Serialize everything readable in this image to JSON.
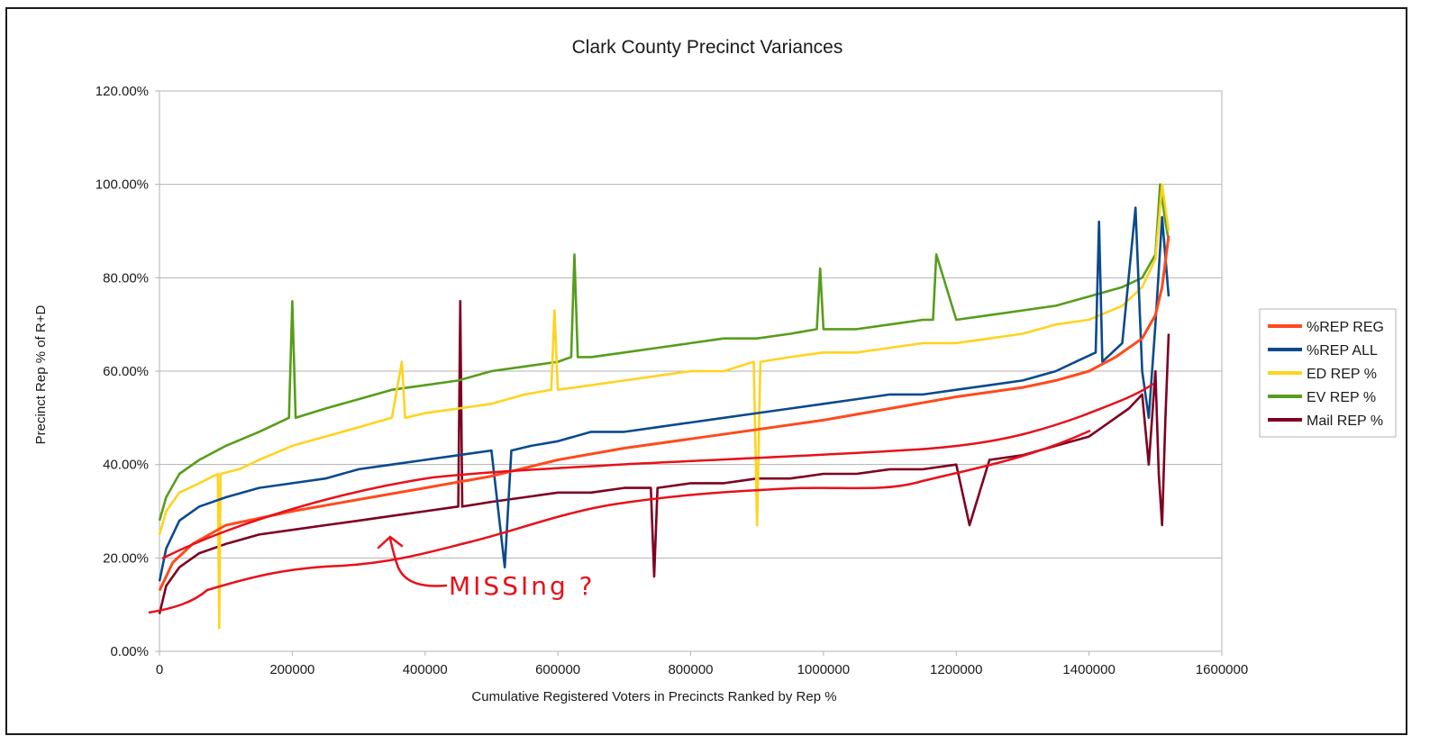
{
  "chart_data": {
    "type": "line",
    "title": "Clark County Precinct Variances",
    "xlabel": "Cumulative Registered Voters in Precincts Ranked by Rep %",
    "ylabel": "Precinct Rep % of R+D",
    "xlim": [
      0,
      1600000
    ],
    "ylim": [
      0,
      1.2
    ],
    "x_ticks": [
      "0",
      "200000",
      "400000",
      "600000",
      "800000",
      "1000000",
      "1200000",
      "1400000",
      "1600000"
    ],
    "y_ticks": [
      "0.00%",
      "20.00%",
      "40.00%",
      "60.00%",
      "80.00%",
      "100.00%",
      "120.00%"
    ],
    "grid": "horizontal",
    "legend_position": "right",
    "series": [
      {
        "name": "%REP REG",
        "color": "#ff4a1c",
        "x": [
          0,
          20000,
          50000,
          100000,
          150000,
          200000,
          300000,
          400000,
          500000,
          600000,
          700000,
          800000,
          900000,
          1000000,
          1100000,
          1200000,
          1300000,
          1350000,
          1400000,
          1440000,
          1480000,
          1500000,
          1510000,
          1520000
        ],
        "values": [
          0.13,
          0.19,
          0.23,
          0.27,
          0.285,
          0.3,
          0.325,
          0.35,
          0.375,
          0.41,
          0.435,
          0.455,
          0.475,
          0.495,
          0.52,
          0.545,
          0.565,
          0.58,
          0.6,
          0.63,
          0.67,
          0.72,
          0.78,
          0.89
        ]
      },
      {
        "name": "%REP ALL",
        "color": "#0a4a8c",
        "x": [
          0,
          10000,
          30000,
          60000,
          100000,
          150000,
          200000,
          250000,
          300000,
          350000,
          400000,
          450000,
          500000,
          520000,
          530000,
          560000,
          600000,
          650000,
          700000,
          750000,
          800000,
          850000,
          900000,
          950000,
          1000000,
          1050000,
          1100000,
          1150000,
          1200000,
          1250000,
          1300000,
          1350000,
          1380000,
          1410000,
          1415000,
          1420000,
          1450000,
          1470000,
          1480000,
          1490000,
          1500000,
          1510000,
          1520000
        ],
        "values": [
          0.15,
          0.22,
          0.28,
          0.31,
          0.33,
          0.35,
          0.36,
          0.37,
          0.39,
          0.4,
          0.41,
          0.42,
          0.43,
          0.18,
          0.43,
          0.44,
          0.45,
          0.47,
          0.47,
          0.48,
          0.49,
          0.5,
          0.51,
          0.52,
          0.53,
          0.54,
          0.55,
          0.55,
          0.56,
          0.57,
          0.58,
          0.6,
          0.62,
          0.64,
          0.92,
          0.62,
          0.66,
          0.95,
          0.6,
          0.5,
          0.7,
          0.93,
          0.76
        ]
      },
      {
        "name": "ED REP %",
        "color": "#ffd320",
        "x": [
          0,
          10000,
          30000,
          60000,
          88000,
          90000,
          92000,
          120000,
          150000,
          200000,
          250000,
          300000,
          350000,
          365000,
          370000,
          400000,
          450000,
          500000,
          550000,
          590000,
          595000,
          600000,
          650000,
          700000,
          750000,
          800000,
          850000,
          895000,
          900000,
          905000,
          950000,
          1000000,
          1050000,
          1100000,
          1150000,
          1200000,
          1250000,
          1300000,
          1350000,
          1400000,
          1450000,
          1480000,
          1500000,
          1510000,
          1520000
        ],
        "values": [
          0.25,
          0.3,
          0.34,
          0.36,
          0.38,
          0.05,
          0.38,
          0.39,
          0.41,
          0.44,
          0.46,
          0.48,
          0.5,
          0.62,
          0.5,
          0.51,
          0.52,
          0.53,
          0.55,
          0.56,
          0.73,
          0.56,
          0.57,
          0.58,
          0.59,
          0.6,
          0.6,
          0.62,
          0.27,
          0.62,
          0.63,
          0.64,
          0.64,
          0.65,
          0.66,
          0.66,
          0.67,
          0.68,
          0.7,
          0.71,
          0.74,
          0.78,
          0.84,
          1.0,
          0.9
        ]
      },
      {
        "name": "EV REP %",
        "color": "#579d1c",
        "x": [
          0,
          10000,
          30000,
          60000,
          100000,
          150000,
          195000,
          200000,
          205000,
          250000,
          300000,
          350000,
          400000,
          450000,
          500000,
          550000,
          600000,
          620000,
          625000,
          630000,
          650000,
          700000,
          750000,
          800000,
          850000,
          900000,
          950000,
          990000,
          995000,
          1000000,
          1050000,
          1100000,
          1150000,
          1165000,
          1170000,
          1200000,
          1250000,
          1300000,
          1350000,
          1400000,
          1450000,
          1480000,
          1500000,
          1507000,
          1515000,
          1520000
        ],
        "values": [
          0.28,
          0.33,
          0.38,
          0.41,
          0.44,
          0.47,
          0.5,
          0.75,
          0.5,
          0.52,
          0.54,
          0.56,
          0.57,
          0.58,
          0.6,
          0.61,
          0.62,
          0.63,
          0.85,
          0.63,
          0.63,
          0.64,
          0.65,
          0.66,
          0.67,
          0.67,
          0.68,
          0.69,
          0.82,
          0.69,
          0.69,
          0.7,
          0.71,
          0.71,
          0.85,
          0.71,
          0.72,
          0.73,
          0.74,
          0.76,
          0.78,
          0.8,
          0.85,
          1.0,
          0.92,
          0.88
        ]
      },
      {
        "name": "Mail REP %",
        "color": "#7e0021",
        "x": [
          0,
          10000,
          30000,
          60000,
          100000,
          150000,
          200000,
          250000,
          300000,
          350000,
          400000,
          450000,
          453000,
          456000,
          500000,
          550000,
          600000,
          650000,
          700000,
          740000,
          745000,
          750000,
          800000,
          850000,
          900000,
          950000,
          1000000,
          1050000,
          1100000,
          1150000,
          1200000,
          1220000,
          1250000,
          1300000,
          1350000,
          1400000,
          1420000,
          1440000,
          1460000,
          1480000,
          1490000,
          1500000,
          1505000,
          1510000,
          1515000,
          1520000
        ],
        "values": [
          0.08,
          0.14,
          0.18,
          0.21,
          0.23,
          0.25,
          0.26,
          0.27,
          0.28,
          0.29,
          0.3,
          0.31,
          0.75,
          0.31,
          0.32,
          0.33,
          0.34,
          0.34,
          0.35,
          0.35,
          0.16,
          0.35,
          0.36,
          0.36,
          0.37,
          0.37,
          0.38,
          0.38,
          0.39,
          0.39,
          0.4,
          0.27,
          0.41,
          0.42,
          0.44,
          0.46,
          0.48,
          0.5,
          0.52,
          0.55,
          0.4,
          0.6,
          0.38,
          0.27,
          0.5,
          0.68
        ]
      }
    ],
    "annotation": {
      "text": "MISSIng ?",
      "color": "#e8101a"
    }
  }
}
